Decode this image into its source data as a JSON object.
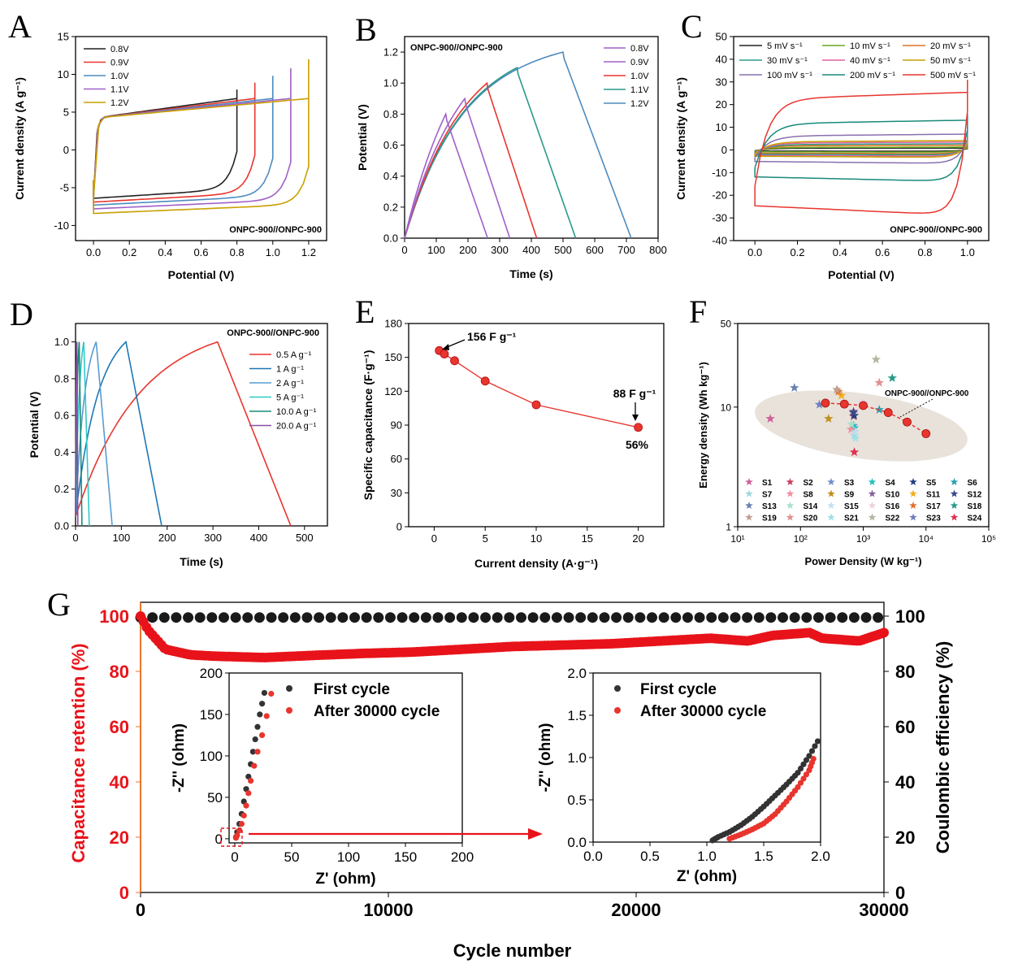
{
  "panel_letters": [
    "A",
    "B",
    "C",
    "D",
    "E",
    "F",
    "G"
  ],
  "chart_data": [
    {
      "id": "A",
      "type": "line",
      "xlabel": "Potential (V)",
      "ylabel": "Current density (A g⁻¹)",
      "xlim": [
        -0.1,
        1.3
      ],
      "ylim": [
        -12,
        15
      ],
      "xticks": [
        "0.0",
        "0.2",
        "0.4",
        "0.6",
        "0.8",
        "1.0",
        "1.2"
      ],
      "yticks": [
        "-10",
        "-5",
        "0",
        "5",
        "10",
        "15"
      ],
      "annotation": "ONPC-900//ONPC-900",
      "legend_position": "top-left",
      "series": [
        {
          "name": "0.8V",
          "color": "#222222",
          "vmax": 0.8,
          "top": 8.0,
          "bottom": -6.4
        },
        {
          "name": "0.9V",
          "color": "#e8352e",
          "vmax": 0.9,
          "top": 8.9,
          "bottom": -6.9
        },
        {
          "name": "1.0V",
          "color": "#4d8bbf",
          "vmax": 1.0,
          "top": 9.8,
          "bottom": -7.3
        },
        {
          "name": "1.1V",
          "color": "#a060c8",
          "vmax": 1.1,
          "top": 10.8,
          "bottom": -7.8
        },
        {
          "name": "1.2V",
          "color": "#c9a000",
          "vmax": 1.2,
          "top": 12.0,
          "bottom": -8.4
        }
      ]
    },
    {
      "id": "B",
      "type": "line",
      "xlabel": "Time (s)",
      "ylabel": "Potential (V)",
      "xlim": [
        0,
        800
      ],
      "ylim": [
        0,
        1.3
      ],
      "xticks": [
        "0",
        "100",
        "200",
        "300",
        "400",
        "500",
        "600",
        "700",
        "800"
      ],
      "yticks": [
        "0.0",
        "0.2",
        "0.4",
        "0.6",
        "0.8",
        "1.0",
        "1.2"
      ],
      "annotation": "ONPC-900//ONPC-900",
      "legend_position": "top-right",
      "series": [
        {
          "name": "0.8V",
          "color": "#a060c8",
          "vmax": 0.8,
          "t_peak": 130,
          "t_end": 262
        },
        {
          "name": "0.9V",
          "color": "#a060c8",
          "vmax": 0.9,
          "t_peak": 190,
          "t_end": 332
        },
        {
          "name": "1.0V",
          "color": "#e8352e",
          "vmax": 1.0,
          "t_peak": 260,
          "t_end": 417
        },
        {
          "name": "1.1V",
          "color": "#2a9a8a",
          "vmax": 1.1,
          "t_peak": 355,
          "t_end": 540
        },
        {
          "name": "1.2V",
          "color": "#4d8bbf",
          "vmax": 1.2,
          "t_peak": 500,
          "t_end": 715
        }
      ]
    },
    {
      "id": "C",
      "type": "line",
      "xlabel": "Potential (V)",
      "ylabel": "Current density (A g⁻¹)",
      "xlim": [
        -0.1,
        1.1
      ],
      "ylim": [
        -40,
        50
      ],
      "xticks": [
        "0.0",
        "0.2",
        "0.4",
        "0.6",
        "0.8",
        "1.0"
      ],
      "yticks": [
        "-40",
        "-30",
        "-20",
        "-10",
        "0",
        "10",
        "20",
        "30",
        "40",
        "50"
      ],
      "annotation": "ONPC-900//ONPC-900",
      "legend_position": "top",
      "series": [
        {
          "name": "5 mV s⁻¹",
          "color": "#222222",
          "top": 1.0,
          "bottom": -0.6
        },
        {
          "name": "10 mV s⁻¹",
          "color": "#6aaa1e",
          "top": 1.5,
          "bottom": -1.0
        },
        {
          "name": "20 mV s⁻¹",
          "color": "#e07020",
          "top": 2.5,
          "bottom": -1.7
        },
        {
          "name": "30 mV s⁻¹",
          "color": "#2a9a8a",
          "top": 3.3,
          "bottom": -2.2
        },
        {
          "name": "40 mV s⁻¹",
          "color": "#e060a0",
          "top": 4.2,
          "bottom": -2.8
        },
        {
          "name": "50 mV s⁻¹",
          "color": "#c9a000",
          "top": 5.0,
          "bottom": -3.3
        },
        {
          "name": "100 mV s⁻¹",
          "color": "#8a70b0",
          "top": 8.5,
          "bottom": -6.0
        },
        {
          "name": "200 mV s⁻¹",
          "color": "#1a8a7a",
          "top": 16.0,
          "bottom": -14.0
        },
        {
          "name": "500 mV s⁻¹",
          "color": "#e8352e",
          "top": 31.0,
          "bottom": -29.0
        }
      ]
    },
    {
      "id": "D",
      "type": "line",
      "xlabel": "Time (s)",
      "ylabel": "Potential (V)",
      "xlim": [
        0,
        550
      ],
      "ylim": [
        0,
        1.1
      ],
      "xticks": [
        "0",
        "100",
        "200",
        "300",
        "400",
        "500"
      ],
      "yticks": [
        "0.0",
        "0.2",
        "0.4",
        "0.6",
        "0.8",
        "1.0"
      ],
      "annotation": "ONPC-900//ONPC-900",
      "legend_position": "right",
      "series": [
        {
          "name": "0.5 A g⁻¹",
          "color": "#e8352e",
          "t_peak": 310,
          "t_end": 470
        },
        {
          "name": "1 A g⁻¹",
          "color": "#1f77b4",
          "t_peak": 110,
          "t_end": 188
        },
        {
          "name": "2 A g⁻¹",
          "color": "#5a9bd0",
          "t_peak": 45,
          "t_end": 80
        },
        {
          "name": "5 A g⁻¹",
          "color": "#30c8c8",
          "t_peak": 18,
          "t_end": 30
        },
        {
          "name": "10.0 A g⁻¹",
          "color": "#1a8a7a",
          "t_peak": 8,
          "t_end": 14
        },
        {
          "name": "20.0 A g⁻¹",
          "color": "#8a4fa0",
          "t_peak": 3,
          "t_end": 5
        }
      ]
    },
    {
      "id": "E",
      "type": "line",
      "xlabel": "Current density (A·g⁻¹)",
      "ylabel": "Specific capacitance (F·g⁻¹)",
      "xlim": [
        -2.5,
        22.5
      ],
      "ylim": [
        0,
        180
      ],
      "xticks": [
        "0",
        "5",
        "10",
        "15",
        "20"
      ],
      "yticks": [
        "0",
        "30",
        "60",
        "90",
        "120",
        "150",
        "180"
      ],
      "x": [
        0.5,
        1,
        2,
        5,
        10,
        20
      ],
      "values": [
        156,
        153,
        147,
        129,
        108,
        88
      ],
      "annotations": [
        "156 F g⁻¹",
        "88 F g⁻¹",
        "56%"
      ],
      "color": "#e8352e"
    },
    {
      "id": "F",
      "type": "scatter",
      "xlabel": "Power Density (W kg⁻¹)",
      "ylabel": "Energy density (Wh kg⁻¹)",
      "xscale": "log",
      "yscale": "log",
      "xlim": [
        10,
        100000
      ],
      "ylim": [
        1,
        50
      ],
      "xticks": [
        "10¹",
        "10²",
        "10³",
        "10⁴",
        "10⁵"
      ],
      "yticks": [
        "1",
        "10",
        "50"
      ],
      "annotation": "ONPC-900//ONPC-900",
      "this_work": {
        "x": [
          250,
          500,
          1000,
          2500,
          5000,
          10000
        ],
        "y": [
          10.8,
          10.6,
          10.3,
          9.0,
          7.5,
          6.0
        ],
        "color": "#e8352e"
      },
      "references": [
        {
          "name": "S1",
          "color": "#d0609a",
          "x": 33,
          "y": 8.0
        },
        {
          "name": "S2",
          "color": "#c84060",
          "x": 700,
          "y": 8.4
        },
        {
          "name": "S3",
          "color": "#7090c8",
          "x": 700,
          "y": 7.0
        },
        {
          "name": "S4",
          "color": "#20c0c0",
          "x": 720,
          "y": 6.7
        },
        {
          "name": "S5",
          "color": "#204080",
          "x": 720,
          "y": 8.5
        },
        {
          "name": "S6",
          "color": "#2aa0b0",
          "x": 1800,
          "y": 9.5
        },
        {
          "name": "S7",
          "color": "#a0d8e0",
          "x": 720,
          "y": 5.8
        },
        {
          "name": "S8",
          "color": "#f090a0",
          "x": 640,
          "y": 6.5
        },
        {
          "name": "S9",
          "color": "#c09020",
          "x": 280,
          "y": 8.0
        },
        {
          "name": "S10",
          "color": "#8a5fa0",
          "x": 700,
          "y": 9.2
        },
        {
          "name": "S11",
          "color": "#f0b020",
          "x": 450,
          "y": 12.5
        },
        {
          "name": "S12",
          "color": "#3a4a8a",
          "x": 700,
          "y": 9.0
        },
        {
          "name": "S13",
          "color": "#6a80b0",
          "x": 80,
          "y": 14.5
        },
        {
          "name": "S14",
          "color": "#a8e0c8",
          "x": 650,
          "y": 7.2
        },
        {
          "name": "S15",
          "color": "#c0e0f0",
          "x": 750,
          "y": 6.2
        },
        {
          "name": "S16",
          "color": "#f0d0e0",
          "x": 1000,
          "y": 11.0
        },
        {
          "name": "S17",
          "color": "#e07030",
          "x": 400,
          "y": 13.5
        },
        {
          "name": "S18",
          "color": "#2a9a8a",
          "x": 2900,
          "y": 17.5
        },
        {
          "name": "S19",
          "color": "#c0a090",
          "x": 380,
          "y": 14.0
        },
        {
          "name": "S20",
          "color": "#e09090",
          "x": 1800,
          "y": 16.0
        },
        {
          "name": "S21",
          "color": "#a0e0e8",
          "x": 750,
          "y": 5.5
        },
        {
          "name": "S22",
          "color": "#b0b8a0",
          "x": 1600,
          "y": 25.0
        },
        {
          "name": "S23",
          "color": "#7080c0",
          "x": 200,
          "y": 10.5
        },
        {
          "name": "S24",
          "color": "#e03050",
          "x": 720,
          "y": 4.2
        }
      ]
    },
    {
      "id": "G",
      "type": "scatter",
      "xlabel": "Cycle number",
      "ylabel": "Capacitance retention (%)",
      "ylabel_right": "Coulombic efficiency (%)",
      "xlim": [
        0,
        30000
      ],
      "ylim": [
        0,
        105
      ],
      "xticks": [
        "0",
        "10000",
        "20000",
        "30000"
      ],
      "yticks": [
        "0",
        "20",
        "40",
        "60",
        "80",
        "100"
      ],
      "series": [
        {
          "name": "Coulombic efficiency",
          "color": "#111111",
          "x": [
            0,
            30000
          ],
          "y": [
            99.5,
            99.5
          ]
        },
        {
          "name": "Capacitance retention",
          "color": "#e8131a",
          "x": [
            0,
            300,
            1000,
            2000,
            3000,
            5000,
            7000,
            9000,
            11000,
            13000,
            15000,
            17000,
            19000,
            21000,
            23000,
            24500,
            25500,
            27000,
            27500,
            29000,
            30000
          ],
          "y": [
            100,
            95,
            88,
            86,
            85.5,
            85,
            85.8,
            86.5,
            87,
            88,
            89,
            89.5,
            90,
            91,
            92,
            91,
            93,
            94,
            92,
            91,
            94
          ]
        }
      ],
      "insets": [
        {
          "type": "scatter",
          "xlabel": "Z' (ohm)",
          "ylabel": "-Z'' (ohm)",
          "xlim": [
            -5,
            200
          ],
          "ylim": [
            -5,
            200
          ],
          "xticks": [
            "0",
            "50",
            "100",
            "150",
            "200"
          ],
          "yticks": [
            "0",
            "50",
            "100",
            "150",
            "200"
          ],
          "legend": [
            "First cycle",
            "After 30000 cycle"
          ],
          "series": [
            {
              "name": "First cycle",
              "color": "#333333",
              "x": [
                1,
                2,
                4,
                6,
                8,
                10,
                12,
                14,
                16,
                18,
                20,
                22,
                24,
                26
              ],
              "y": [
                2,
                8,
                18,
                30,
                45,
                60,
                75,
                90,
                105,
                120,
                135,
                150,
                163,
                176
              ]
            },
            {
              "name": "After 30000 cycle",
              "color": "#e8352e",
              "x": [
                1,
                2,
                4,
                6,
                8,
                10,
                12,
                14,
                17,
                20,
                24,
                28,
                32
              ],
              "y": [
                1,
                4,
                10,
                18,
                28,
                40,
                55,
                70,
                88,
                105,
                125,
                148,
                175
              ]
            }
          ]
        },
        {
          "type": "scatter",
          "xlabel": "Z' (ohm)",
          "ylabel": "-Z'' (ohm)",
          "xlim": [
            0,
            2.0
          ],
          "ylim": [
            0,
            2.0
          ],
          "xticks": [
            "0.0",
            "0.5",
            "1.0",
            "1.5",
            "2.0"
          ],
          "yticks": [
            "0.0",
            "0.5",
            "1.0",
            "1.5",
            "2.0"
          ],
          "legend": [
            "First cycle",
            "After 30000 cycle"
          ],
          "series": [
            {
              "name": "First cycle",
              "color": "#333333",
              "x": [
                1.05,
                1.1,
                1.2,
                1.3,
                1.4,
                1.5,
                1.6,
                1.7,
                1.8,
                1.9,
                2.0
              ],
              "y": [
                0.02,
                0.06,
                0.12,
                0.2,
                0.3,
                0.42,
                0.55,
                0.68,
                0.82,
                1.02,
                1.25
              ]
            },
            {
              "name": "After 30000 cycle",
              "color": "#e8352e",
              "x": [
                1.2,
                1.3,
                1.4,
                1.5,
                1.6,
                1.7,
                1.8,
                1.9,
                1.95
              ],
              "y": [
                0.04,
                0.09,
                0.15,
                0.22,
                0.33,
                0.48,
                0.65,
                0.85,
                1.03
              ]
            }
          ]
        }
      ]
    }
  ]
}
